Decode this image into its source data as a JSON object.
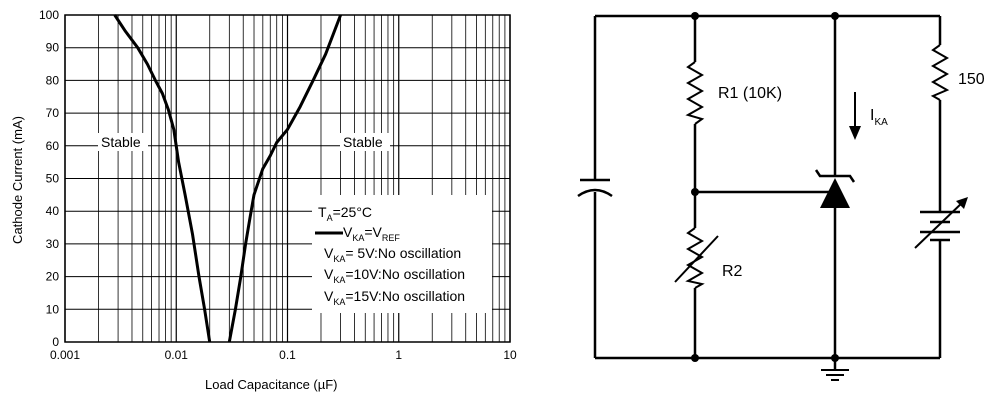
{
  "chart_data": {
    "type": "line",
    "xlabel": "Load Capacitance (µF)",
    "ylabel": "Cathode Current (mA)",
    "x_scale": "log",
    "xlim": [
      0.001,
      10
    ],
    "ylim": [
      0,
      100
    ],
    "x_ticks": [
      "0.001",
      "0.01",
      "0.1",
      "1",
      "10"
    ],
    "y_ticks": [
      "0",
      "10",
      "20",
      "30",
      "40",
      "50",
      "60",
      "70",
      "80",
      "90",
      "100"
    ],
    "grid": true,
    "region_labels": [
      "Stable",
      "Stable"
    ],
    "series": [
      {
        "x": [
          0.0028,
          0.0035,
          0.0045,
          0.0055,
          0.0065,
          0.0075,
          0.0085,
          0.0095,
          0.0105,
          0.012,
          0.014,
          0.016,
          0.018,
          0.02
        ],
        "y": [
          100,
          95,
          90,
          85,
          80,
          76,
          71,
          65,
          55,
          45,
          33,
          20,
          10,
          0
        ]
      },
      {
        "x": [
          0.03,
          0.034,
          0.038,
          0.042,
          0.046,
          0.05,
          0.06,
          0.07,
          0.08,
          0.1,
          0.13,
          0.17,
          0.22,
          0.3
        ],
        "y": [
          0,
          10,
          20,
          30,
          38,
          45,
          53,
          57,
          61,
          65,
          72,
          80,
          88,
          100
        ]
      }
    ],
    "legend": {
      "ta": {
        "main": "T",
        "sub": "A",
        "rest": "=25°C"
      },
      "line": {
        "main": "V",
        "sub": "KA",
        "mid": "=V",
        "sub2": "REF"
      },
      "rows": [
        {
          "main": "V",
          "sub": "KA",
          "rest": "= 5V:No oscillation"
        },
        {
          "main": "V",
          "sub": "KA",
          "rest": "=10V:No oscillation"
        },
        {
          "main": "V",
          "sub": "KA",
          "rest": "=15V:No oscillation"
        }
      ]
    }
  },
  "schematic": {
    "r1": "R1 (10K)",
    "r2": "R2",
    "r3": "150",
    "ika_main": "I",
    "ika_sub": "KA"
  }
}
